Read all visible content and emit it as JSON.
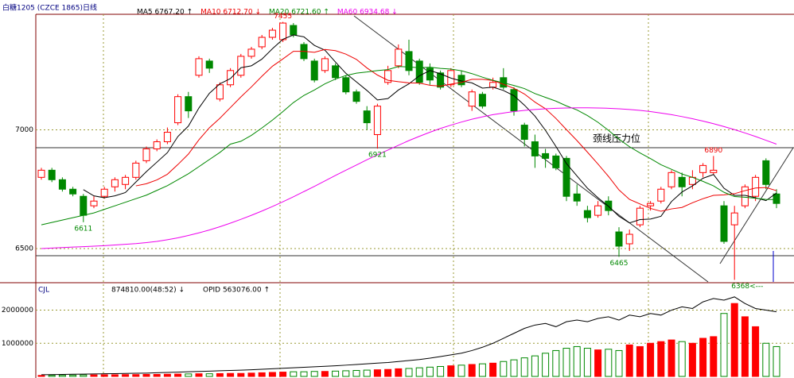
{
  "chart_data": {
    "type": "candlestick",
    "title": "白糖1205 (CZCE 1865)日线",
    "ylim": [
      6356,
      7487
    ],
    "yticks": [
      6500,
      7000
    ],
    "grid": true,
    "up_color": "#ff0000",
    "down_color": "#008800",
    "candles": [
      [
        6800,
        6840,
        6790,
        6830
      ],
      [
        6830,
        6840,
        6780,
        6790
      ],
      [
        6790,
        6800,
        6740,
        6750
      ],
      [
        6750,
        6760,
        6720,
        6730
      ],
      [
        6720,
        6730,
        6611,
        6640
      ],
      [
        6680,
        6720,
        6670,
        6700
      ],
      [
        6720,
        6760,
        6710,
        6750
      ],
      [
        6760,
        6800,
        6740,
        6790
      ],
      [
        6770,
        6810,
        6750,
        6800
      ],
      [
        6800,
        6870,
        6790,
        6860
      ],
      [
        6870,
        6930,
        6860,
        6920
      ],
      [
        6920,
        6960,
        6910,
        6950
      ],
      [
        6950,
        7010,
        6940,
        6990
      ],
      [
        7030,
        7150,
        7020,
        7140
      ],
      [
        7140,
        7160,
        7050,
        7080
      ],
      [
        7230,
        7310,
        7220,
        7300
      ],
      [
        7290,
        7300,
        7240,
        7260
      ],
      [
        7130,
        7200,
        7120,
        7190
      ],
      [
        7190,
        7260,
        7180,
        7250
      ],
      [
        7230,
        7320,
        7220,
        7310
      ],
      [
        7310,
        7350,
        7300,
        7340
      ],
      [
        7350,
        7400,
        7340,
        7390
      ],
      [
        7390,
        7430,
        7380,
        7420
      ],
      [
        7380,
        7455,
        7370,
        7450
      ],
      [
        7440,
        7450,
        7390,
        7400
      ],
      [
        7360,
        7370,
        7290,
        7300
      ],
      [
        7290,
        7300,
        7200,
        7210
      ],
      [
        7250,
        7310,
        7240,
        7300
      ],
      [
        7270,
        7280,
        7210,
        7220
      ],
      [
        7220,
        7230,
        7150,
        7160
      ],
      [
        7160,
        7170,
        7110,
        7120
      ],
      [
        7080,
        7100,
        7000,
        7030
      ],
      [
        6980,
        7110,
        6921,
        7100
      ],
      [
        7200,
        7270,
        7190,
        7250
      ],
      [
        7270,
        7360,
        7260,
        7340
      ],
      [
        7330,
        7380,
        7230,
        7250
      ],
      [
        7290,
        7300,
        7190,
        7200
      ],
      [
        7260,
        7280,
        7190,
        7210
      ],
      [
        7240,
        7250,
        7170,
        7180
      ],
      [
        7190,
        7260,
        7180,
        7250
      ],
      [
        7230,
        7250,
        7180,
        7190
      ],
      [
        7100,
        7170,
        7080,
        7160
      ],
      [
        7150,
        7160,
        7090,
        7100
      ],
      [
        7180,
        7220,
        7170,
        7200
      ],
      [
        7220,
        7260,
        7170,
        7180
      ],
      [
        7170,
        7180,
        7060,
        7080
      ],
      [
        7020,
        7030,
        6930,
        6960
      ],
      [
        6950,
        6980,
        6840,
        6890
      ],
      [
        6900,
        6920,
        6840,
        6880
      ],
      [
        6890,
        6900,
        6830,
        6840
      ],
      [
        6880,
        6890,
        6700,
        6720
      ],
      [
        6730,
        6770,
        6680,
        6700
      ],
      [
        6660,
        6680,
        6610,
        6630
      ],
      [
        6640,
        6700,
        6630,
        6680
      ],
      [
        6700,
        6720,
        6640,
        6660
      ],
      [
        6570,
        6590,
        6465,
        6510
      ],
      [
        6520,
        6580,
        6490,
        6560
      ],
      [
        6600,
        6680,
        6590,
        6670
      ],
      [
        6680,
        6700,
        6660,
        6690
      ],
      [
        6700,
        6760,
        6690,
        6750
      ],
      [
        6760,
        6830,
        6750,
        6820
      ],
      [
        6800,
        6820,
        6720,
        6760
      ],
      [
        6770,
        6830,
        6750,
        6800
      ],
      [
        6820,
        6860,
        6800,
        6850
      ],
      [
        6820,
        6890,
        6810,
        6830
      ],
      [
        6680,
        6700,
        6520,
        6530
      ],
      [
        6600,
        6680,
        6368,
        6650
      ],
      [
        6680,
        6770,
        6670,
        6760
      ],
      [
        6720,
        6810,
        6700,
        6800
      ],
      [
        6870,
        6880,
        6750,
        6770
      ],
      [
        6730,
        6750,
        6670,
        6690
      ]
    ],
    "series": [
      {
        "name": "MA5 6767.20 ↑",
        "color": "#000000",
        "values": [
          null,
          null,
          null,
          null,
          6748,
          6722,
          6714,
          6722,
          6736,
          6780,
          6824,
          6864,
          6904,
          6972,
          7016,
          7092,
          7154,
          7194,
          7216,
          7262,
          7270,
          7298,
          7342,
          7382,
          7400,
          7392,
          7356,
          7336,
          7286,
          7238,
          7202,
          7166,
          7126,
          7132,
          7168,
          7194,
          7228,
          7250,
          7236,
          7218,
          7206,
          7198,
          7176,
          7180,
          7166,
          7144,
          7104,
          7058,
          6998,
          6930,
          6858,
          6806,
          6754,
          6714,
          6678,
          6636,
          6608,
          6622,
          6624,
          6636,
          6698,
          6738,
          6764,
          6796,
          6812,
          6754,
          6724,
          6724,
          6714,
          6702,
          6734
        ]
      },
      {
        "name": "MA10 6712.70 ↓",
        "color": "#ee0000",
        "values": [
          null,
          null,
          null,
          null,
          null,
          null,
          null,
          null,
          null,
          6764,
          6773,
          6789,
          6813,
          6854,
          6898,
          6958,
          7009,
          7049,
          7094,
          7139,
          7181,
          7226,
          7268,
          7299,
          7331,
          7331,
          7327,
          7339,
          7334,
          7319,
          7297,
          7261,
          7231,
          7209,
          7203,
          7198,
          7197,
          7188,
          7184,
          7193,
          7200,
          7213,
          7213,
          7208,
          7192,
          7175,
          7151,
          7117,
          7089,
          7048,
          7001,
          6955,
          6906,
          6856,
          6804,
          6747,
          6707,
          6688,
          6669,
          6657,
          6667,
          6673,
          6693,
          6710,
          6724,
          6726,
          6731,
          6744,
          6755,
          6757,
          6744
        ]
      },
      {
        "name": "MA20 6721.60 ↑",
        "color": "#008800",
        "values": [
          6600,
          6610,
          6620,
          6630,
          6640,
          6650,
          6665,
          6680,
          6695,
          6710,
          6725,
          6745,
          6765,
          6790,
          6815,
          6845,
          6875,
          6905,
          6940,
          6952,
          6977,
          7008,
          7041,
          7077,
          7115,
          7145,
          7168,
          7194,
          7214,
          7229,
          7239,
          7244,
          7250,
          7254,
          7267,
          7265,
          7262,
          7264,
          7259,
          7256,
          7249,
          7237,
          7222,
          7209,
          7198,
          7187,
          7174,
          7153,
          7137,
          7121,
          7101,
          7084,
          7060,
          7032,
          6998,
          6961,
          6929,
          6903,
          6879,
          6853,
          6834,
          6814,
          6800,
          6783,
          6764,
          6737,
          6719,
          6716,
          6712,
          6707,
          6706
        ]
      },
      {
        "name": "MA60 6934.68 ↓",
        "color": "#ee00ee",
        "values": [
          6500,
          6502,
          6504,
          6506,
          6508,
          6510,
          6512,
          6515,
          6518,
          6521,
          6525,
          6530,
          6537,
          6545,
          6555,
          6566,
          6578,
          6592,
          6607,
          6623,
          6640,
          6658,
          6677,
          6697,
          6718,
          6740,
          6762,
          6785,
          6808,
          6830,
          6852,
          6874,
          6895,
          6915,
          6935,
          6955,
          6973,
          6990,
          7006,
          7020,
          7033,
          7045,
          7055,
          7064,
          7071,
          7077,
          7082,
          7086,
          7089,
          7091,
          7092,
          7093,
          7093,
          7092,
          7091,
          7089,
          7086,
          7082,
          7077,
          7071,
          7064,
          7056,
          7047,
          7037,
          7026,
          7014,
          7001,
          6987,
          6972,
          6956,
          6940
        ]
      }
    ],
    "extremes": [
      {
        "index": 4,
        "value": 6611,
        "color": "#008800",
        "at": "low"
      },
      {
        "index": 23,
        "value": 7455,
        "color": "#ee0000",
        "at": "high"
      },
      {
        "index": 32,
        "value": 6921,
        "color": "#008800",
        "at": "low"
      },
      {
        "index": 55,
        "value": 6465,
        "color": "#008800",
        "at": "low"
      },
      {
        "index": 64,
        "value": 6890,
        "color": "#ee0000",
        "at": "high"
      },
      {
        "index": 66,
        "value": 6368,
        "label": "6368<---",
        "color": "#008800",
        "at": "low"
      }
    ],
    "annotation": "颈线压力位",
    "volume": {
      "title": "CJL",
      "volume_label": "874810.00(48:52) ↓",
      "opid_label": "OPID  563076.00 ↑",
      "ylim": [
        0,
        2780000
      ],
      "yticks": [
        1000000,
        2000000
      ],
      "values": [
        30000,
        35000,
        40000,
        40000,
        45000,
        45000,
        50000,
        50000,
        55000,
        55000,
        60000,
        60000,
        65000,
        70000,
        75000,
        80000,
        80000,
        85000,
        90000,
        90000,
        100000,
        110000,
        120000,
        130000,
        140000,
        140000,
        150000,
        150000,
        160000,
        170000,
        180000,
        190000,
        200000,
        210000,
        230000,
        240000,
        260000,
        280000,
        300000,
        320000,
        340000,
        360000,
        380000,
        400000,
        450000,
        500000,
        560000,
        620000,
        700000,
        780000,
        850000,
        900000,
        850000,
        800000,
        820000,
        780000,
        950000,
        900000,
        1000000,
        1050000,
        1100000,
        1050000,
        1000000,
        1150000,
        1200000,
        1900000,
        2200000,
        1800000,
        1500000,
        1000000,
        900000
      ],
      "opid": [
        50000,
        55000,
        60000,
        65000,
        70000,
        75000,
        80000,
        85000,
        90000,
        95000,
        100000,
        110000,
        120000,
        130000,
        140000,
        150000,
        160000,
        170000,
        180000,
        190000,
        200000,
        215000,
        230000,
        245000,
        260000,
        275000,
        290000,
        305000,
        320000,
        340000,
        360000,
        380000,
        400000,
        420000,
        450000,
        480000,
        510000,
        550000,
        600000,
        650000,
        700000,
        780000,
        880000,
        1000000,
        1150000,
        1300000,
        1450000,
        1550000,
        1600000,
        1500000,
        1650000,
        1700000,
        1650000,
        1750000,
        1800000,
        1700000,
        1850000,
        1800000,
        1900000,
        1850000,
        2000000,
        2100000,
        2050000,
        2250000,
        2350000,
        2300000,
        2400000,
        2200000,
        2050000,
        2000000,
        1950000
      ]
    }
  }
}
